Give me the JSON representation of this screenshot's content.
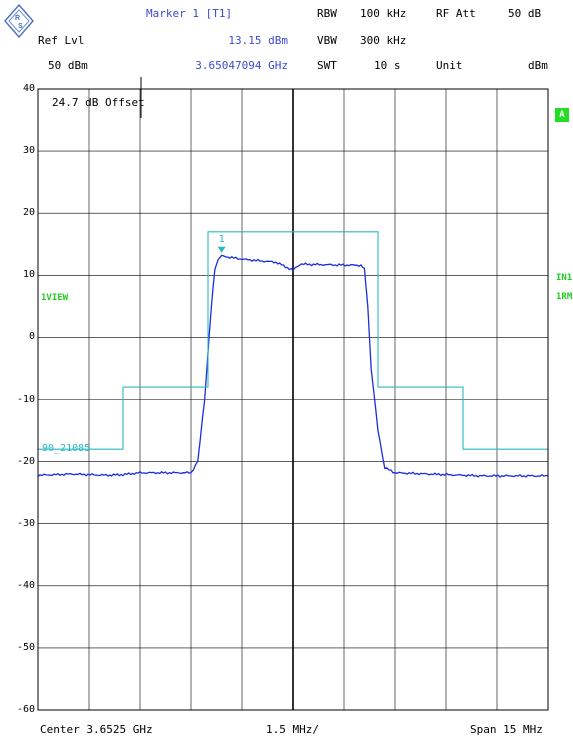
{
  "header": {
    "marker_label": "Marker 1 [T1]",
    "ref_lvl_label": "Ref Lvl",
    "ref_lvl_value": "50 dBm",
    "marker_level": "13.15 dBm",
    "marker_freq": "3.65047094 GHz",
    "rbw_label": "RBW",
    "rbw_value": "100 kHz",
    "rf_att_label": "RF Att",
    "rf_att_value": "50 dB",
    "vbw_label": "VBW",
    "vbw_value": "300 kHz",
    "swt_label": "SWT",
    "swt_value": "10 s",
    "unit_label": "Unit",
    "unit_value": "dBm"
  },
  "annotations": {
    "offset": "24.7 dB Offset",
    "trace_mode": "1VIEW",
    "limit_line_name": "90_21085",
    "marker_number": "1",
    "badge_a": "A",
    "in1": "IN1",
    "rm": "1RM"
  },
  "footer": {
    "center": "Center 3.6525 GHz",
    "per_div": "1.5 MHz/",
    "span": "Span 15 MHz"
  },
  "colors": {
    "trace": "#1a2ee0",
    "limit_line": "#2cb8c0",
    "marker": "#2cb8c0",
    "grid": "#000000",
    "badge": "#22dd22"
  },
  "chart_data": {
    "type": "line",
    "xlabel": "",
    "ylabel": "",
    "x_unit": "MHz offset from center",
    "xlim": [
      -7.5,
      7.5
    ],
    "ylim": [
      -60,
      40
    ],
    "yticks": [
      40,
      30,
      20,
      10,
      0,
      -10,
      -20,
      -30,
      -40,
      -50,
      -60
    ],
    "grid": true,
    "series": [
      {
        "x": [
          -7.5,
          -6.5,
          -5.5,
          -5.0,
          -4.5,
          -3.0,
          -2.8,
          -2.6,
          -2.4,
          -2.3,
          -2.2,
          -2.1,
          -1.5,
          -0.5,
          0.0,
          0.2,
          1.0,
          2.0,
          2.1,
          2.2,
          2.3,
          2.5,
          2.7,
          3.0,
          4.0,
          5.5,
          7.5
        ],
        "y": [
          -22.2,
          -22.0,
          -22.2,
          -22.1,
          -21.8,
          -21.8,
          -20.0,
          -10.0,
          5.0,
          11.0,
          12.6,
          13.1,
          12.6,
          12.1,
          10.8,
          11.8,
          11.7,
          11.6,
          11.0,
          5.0,
          -5.0,
          -15.0,
          -21.0,
          -21.8,
          -22.0,
          -22.3,
          -22.3
        ]
      },
      {
        "x": [
          -7.5,
          -5.0,
          -5.0,
          -2.5,
          -2.5,
          2.5,
          2.5,
          5.0,
          5.0,
          7.5
        ],
        "y": [
          -18,
          -18,
          -8,
          -8,
          17,
          17,
          -8,
          -8,
          -18,
          -18
        ]
      }
    ],
    "markers": [
      {
        "name": "1",
        "x": -2.1,
        "y": 13.15
      }
    ]
  }
}
